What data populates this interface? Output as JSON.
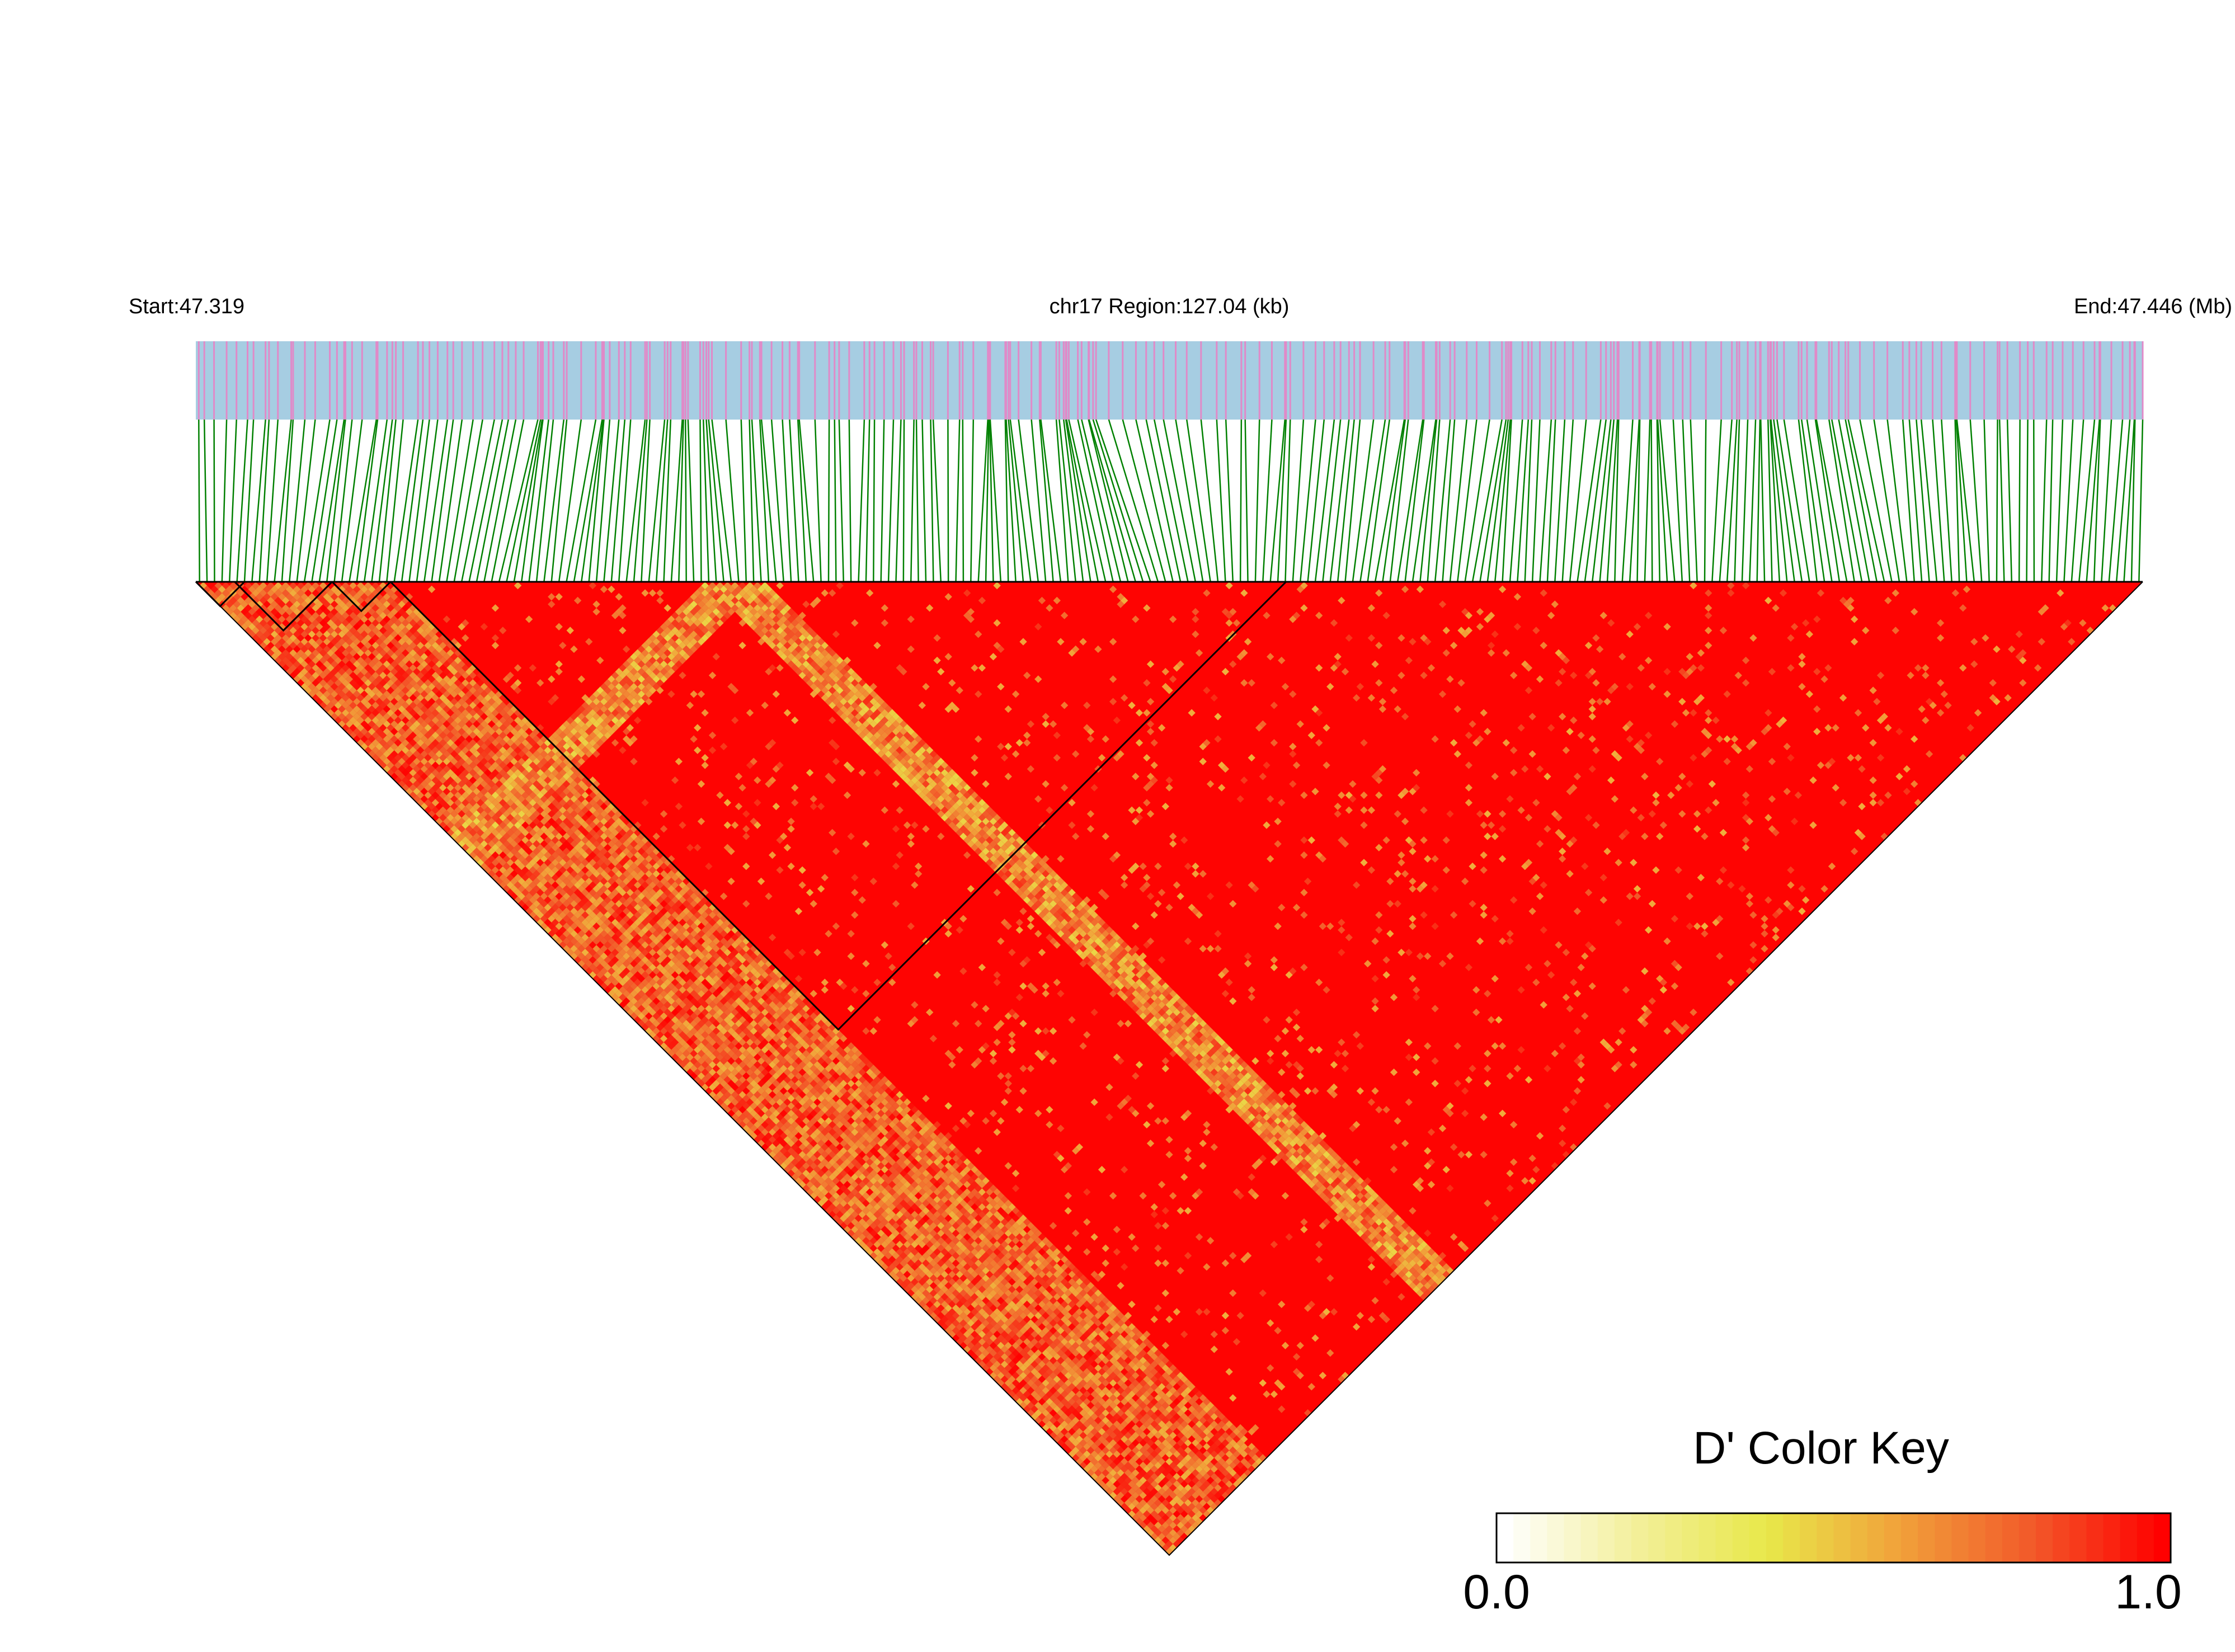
{
  "chart_data": {
    "type": "heatmap",
    "subtype": "ld-triangle",
    "header": {
      "start_label": "Start:47.319",
      "region_label": "chr17 Region:127.04 (kb)",
      "end_label": "End:47.446 (Mb)"
    },
    "region": {
      "chromosome": "chr17",
      "start_mb": 47.319,
      "end_mb": 47.446,
      "length_kb": 127.04
    },
    "color_key": {
      "title": "D' Color Key",
      "min_label": "0.0",
      "max_label": "1.0",
      "min": 0.0,
      "max": 1.0,
      "stops": [
        "#ffffff",
        "#f3ef9a",
        "#e8e84a",
        "#f1a13a",
        "#f25a2a",
        "#ff0000"
      ]
    },
    "colors": {
      "track_background": "#a6cde2",
      "snp_tick": "#e08ac8",
      "connector": "#008000",
      "heatmap_dominant": "#ff0000",
      "block_outline": "#000000"
    },
    "marker_count": 260,
    "dominant_value": 0.99,
    "cluster_regions": [
      {
        "from_fraction": 0.0,
        "to_fraction": 0.1,
        "typical_value": 0.55
      },
      {
        "from_fraction": 0.26,
        "to_fraction": 0.29,
        "typical_value": 0.45
      }
    ],
    "ld_blocks": [
      {
        "from_fraction": 0.0,
        "to_fraction": 0.025
      },
      {
        "from_fraction": 0.02,
        "to_fraction": 0.07
      },
      {
        "from_fraction": 0.07,
        "to_fraction": 0.1
      },
      {
        "from_fraction": 0.1,
        "to_fraction": 0.56
      }
    ]
  }
}
